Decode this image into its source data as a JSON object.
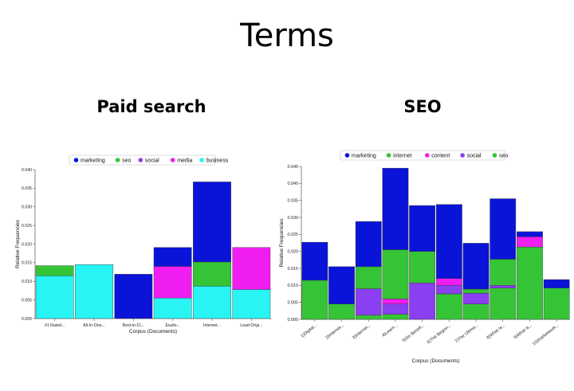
{
  "slide": {
    "title": "Terms"
  },
  "panels": [
    {
      "title": "Paid search"
    },
    {
      "title": "SEO"
    }
  ],
  "colors": {
    "marketing": "#0a14d8",
    "seo": "#35c435",
    "social": "#8a3ff0",
    "media": "#f01ef0",
    "business": "#28f4f4",
    "internet": "#35c435",
    "content": "#f01ef0"
  },
  "chart_data": [
    {
      "type": "bar",
      "stacked": true,
      "xlabel": "Corpus (Documents)",
      "ylabel": "Relative Frequencies",
      "ylim": [
        0,
        0.04
      ],
      "yticks": [
        "0.000",
        "0.005",
        "0.010",
        "0.015",
        "0.020",
        "0.025",
        "0.030",
        "0.035",
        "0.040"
      ],
      "legend": [
        "marketing",
        "seo",
        "social",
        "media",
        "business"
      ],
      "legend_position": "top",
      "categories": [
        "#1 Rated...",
        "All-In-One...",
        "Best-in-Cl...",
        "Exults...",
        "Internet...",
        "Lead Origi..."
      ],
      "series": [
        {
          "name": "business",
          "values": [
            0.0115,
            0.0145,
            0,
            0.0055,
            0.0087,
            0.0078
          ]
        },
        {
          "name": "seo",
          "values": [
            0.0027,
            0,
            0,
            0,
            0.0065,
            0
          ]
        },
        {
          "name": "media",
          "values": [
            0,
            0,
            0,
            0.0085,
            0,
            0.0113
          ]
        },
        {
          "name": "marketing",
          "values": [
            0,
            0,
            0.0119,
            0.0051,
            0.0215,
            0
          ]
        },
        {
          "name": "social",
          "values": [
            0,
            0,
            0,
            0,
            0,
            0
          ]
        }
      ]
    },
    {
      "type": "bar",
      "stacked": true,
      "xlabel": "Corpus (Documents)",
      "ylabel": "Relative Frequencies",
      "ylim": [
        0,
        0.045
      ],
      "yticks": [
        "0.000",
        "0.005",
        "0.010",
        "0.015",
        "0.020",
        "0.025",
        "0.030",
        "0.035",
        "0.040",
        "0.045"
      ],
      "legend": [
        "marketing",
        "internet",
        "content",
        "social",
        "seo"
      ],
      "legend_position": "top",
      "categories": [
        "1)Digital...",
        "2)Internet...",
        "3)Internet...",
        "4)Learn...",
        "5)Six Benefi...",
        "6)The Beginn...",
        "7)The Ultima...",
        "8)What Is...",
        "9)What is...",
        "10)marketwork..."
      ],
      "series": [
        {
          "name": "seo",
          "values": [
            0.0115,
            0,
            0.0012,
            0.0015,
            0,
            0.0075,
            0.0045,
            0.0092,
            0.0213,
            0
          ]
        },
        {
          "name": "social",
          "values": [
            0,
            0,
            0.0078,
            0.003,
            0.0107,
            0.0025,
            0.0032,
            0.0008,
            0,
            0
          ]
        },
        {
          "name": "content",
          "values": [
            0,
            0,
            0,
            0.0015,
            0,
            0.002,
            0,
            0,
            0.003,
            0
          ]
        },
        {
          "name": "internet",
          "values": [
            0,
            0.0045,
            0.0065,
            0.0145,
            0.0093,
            0,
            0.0012,
            0.0077,
            0,
            0.0092
          ]
        },
        {
          "name": "marketing",
          "values": [
            0.0112,
            0.011,
            0.0133,
            0.024,
            0.0135,
            0.0218,
            0.0135,
            0.0178,
            0.0015,
            0.0025
          ]
        }
      ]
    }
  ]
}
